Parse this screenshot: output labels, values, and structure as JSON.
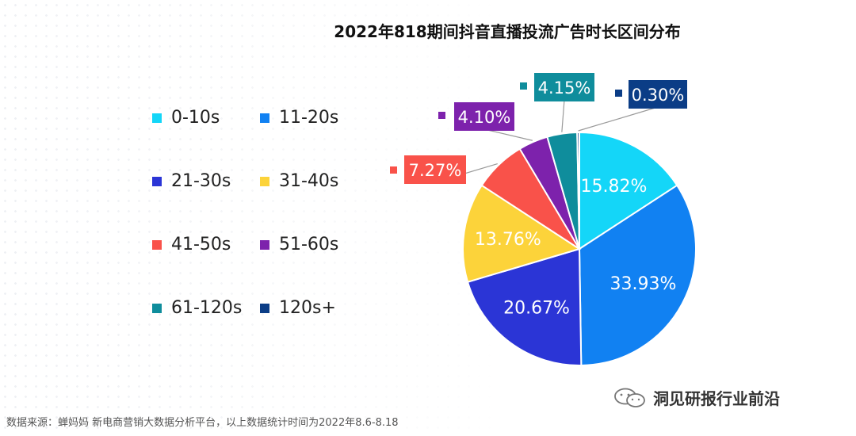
{
  "chart_data": {
    "type": "pie",
    "title": "2022年818期间抖音直播投流广告时长区间分布",
    "slices": [
      {
        "label": "0-10s",
        "value": 15.82,
        "display": "15.82%",
        "color": "#14d6f8"
      },
      {
        "label": "11-20s",
        "value": 33.93,
        "display": "33.93%",
        "color": "#1181f2"
      },
      {
        "label": "21-30s",
        "value": 20.67,
        "display": "20.67%",
        "color": "#2b35d6"
      },
      {
        "label": "31-40s",
        "value": 13.76,
        "display": "13.76%",
        "color": "#fcd33a"
      },
      {
        "label": "41-50s",
        "value": 7.27,
        "display": "7.27%",
        "color": "#f9524a"
      },
      {
        "label": "51-60s",
        "value": 4.1,
        "display": "4.10%",
        "color": "#7d22ac"
      },
      {
        "label": "61-120s",
        "value": 4.15,
        "display": "4.15%",
        "color": "#0f8d9c"
      },
      {
        "label": "120s+",
        "value": 0.3,
        "display": "0.30%",
        "color": "#0b3d86"
      }
    ],
    "legend_position": "left"
  },
  "source_note": "数据来源：蝉妈妈 新电商营销大数据分析平台，以上数据统计时间为2022年8.6-8.18",
  "watermark": "洞见研报行业前沿"
}
